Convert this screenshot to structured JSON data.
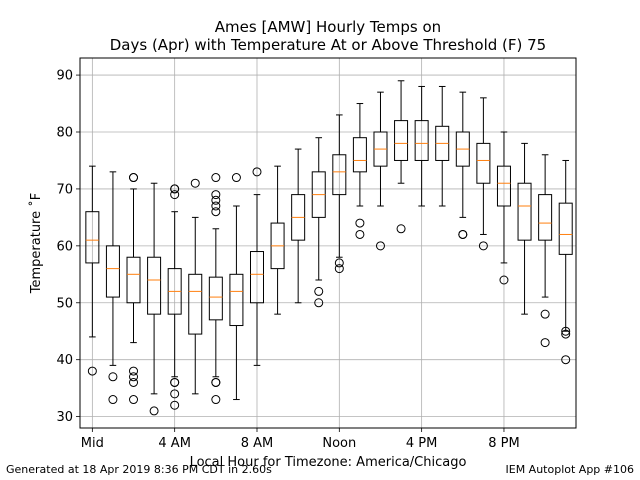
{
  "chart_data": {
    "type": "box",
    "title_line1": "Ames [AMW] Hourly Temps on",
    "title_line2": "Days (Apr) with Temperature At or Above Threshold (F) 75",
    "xlabel": "Local Hour for Timezone: America/Chicago",
    "ylabel": "Temperature ˚F",
    "ylim": [
      28,
      93
    ],
    "xlim": [
      -0.6,
      23.5
    ],
    "yticks": [
      30,
      40,
      50,
      60,
      70,
      80,
      90
    ],
    "xticks": [
      {
        "hour": 0,
        "label": "Mid"
      },
      {
        "hour": 4,
        "label": "4 AM"
      },
      {
        "hour": 8,
        "label": "8 AM"
      },
      {
        "hour": 12,
        "label": "Noon"
      },
      {
        "hour": 16,
        "label": "4 PM"
      },
      {
        "hour": 20,
        "label": "8 PM"
      }
    ],
    "grid": true,
    "box_color": "#000000",
    "median_color": "#ff7f0e",
    "boxes": [
      {
        "hour": 0,
        "whislo": 44,
        "q1": 57,
        "med": 61,
        "q3": 66,
        "whishi": 74,
        "fliers": [
          38
        ]
      },
      {
        "hour": 1,
        "whislo": 39,
        "q1": 51,
        "med": 56,
        "q3": 60,
        "whishi": 73,
        "fliers": [
          33,
          37
        ]
      },
      {
        "hour": 2,
        "whislo": 43,
        "q1": 50,
        "med": 55,
        "q3": 58,
        "whishi": 70,
        "fliers": [
          33,
          36,
          37,
          38,
          72,
          72
        ]
      },
      {
        "hour": 3,
        "whislo": 34,
        "q1": 48,
        "med": 54,
        "q3": 58,
        "whishi": 71,
        "fliers": [
          31
        ]
      },
      {
        "hour": 4,
        "whislo": 37,
        "q1": 48,
        "med": 52,
        "q3": 56,
        "whishi": 66,
        "fliers": [
          32,
          34,
          36,
          36,
          69,
          70,
          70
        ]
      },
      {
        "hour": 5,
        "whislo": 34,
        "q1": 44.5,
        "med": 52,
        "q3": 55,
        "whishi": 65,
        "fliers": [
          71
        ]
      },
      {
        "hour": 6,
        "whislo": 37,
        "q1": 47,
        "med": 51,
        "q3": 54.5,
        "whishi": 63,
        "fliers": [
          33,
          36,
          36,
          66,
          67,
          68,
          69,
          72
        ]
      },
      {
        "hour": 7,
        "whislo": 33,
        "q1": 46,
        "med": 52,
        "q3": 55,
        "whishi": 67,
        "fliers": [
          72
        ]
      },
      {
        "hour": 8,
        "whislo": 39,
        "q1": 50,
        "med": 55,
        "q3": 59,
        "whishi": 69,
        "fliers": [
          73
        ]
      },
      {
        "hour": 9,
        "whislo": 48,
        "q1": 56,
        "med": 60,
        "q3": 64,
        "whishi": 74,
        "fliers": []
      },
      {
        "hour": 10,
        "whislo": 50,
        "q1": 61,
        "med": 65,
        "q3": 69,
        "whishi": 77,
        "fliers": []
      },
      {
        "hour": 11,
        "whislo": 54,
        "q1": 65,
        "med": 69,
        "q3": 73,
        "whishi": 79,
        "fliers": [
          50,
          52
        ]
      },
      {
        "hour": 12,
        "whislo": 58,
        "q1": 69,
        "med": 73,
        "q3": 76,
        "whishi": 83,
        "fliers": [
          56,
          57
        ]
      },
      {
        "hour": 13,
        "whislo": 67,
        "q1": 73,
        "med": 75,
        "q3": 79,
        "whishi": 85,
        "fliers": [
          62,
          64
        ]
      },
      {
        "hour": 14,
        "whislo": 67,
        "q1": 74,
        "med": 77,
        "q3": 80,
        "whishi": 87,
        "fliers": [
          60
        ]
      },
      {
        "hour": 15,
        "whislo": 71,
        "q1": 75,
        "med": 78,
        "q3": 82,
        "whishi": 89,
        "fliers": [
          63
        ]
      },
      {
        "hour": 16,
        "whislo": 67,
        "q1": 75,
        "med": 78,
        "q3": 82,
        "whishi": 88,
        "fliers": []
      },
      {
        "hour": 17,
        "whislo": 67,
        "q1": 75,
        "med": 78,
        "q3": 81,
        "whishi": 88,
        "fliers": []
      },
      {
        "hour": 18,
        "whislo": 65,
        "q1": 74,
        "med": 77,
        "q3": 80,
        "whishi": 87,
        "fliers": [
          62,
          62
        ]
      },
      {
        "hour": 19,
        "whislo": 62,
        "q1": 71,
        "med": 75,
        "q3": 78,
        "whishi": 86,
        "fliers": [
          60
        ]
      },
      {
        "hour": 20,
        "whislo": 57,
        "q1": 67,
        "med": 71,
        "q3": 74,
        "whishi": 80,
        "fliers": [
          54
        ]
      },
      {
        "hour": 21,
        "whislo": 48,
        "q1": 61,
        "med": 67,
        "q3": 71,
        "whishi": 78,
        "fliers": []
      },
      {
        "hour": 22,
        "whislo": 51,
        "q1": 61,
        "med": 64,
        "q3": 69,
        "whishi": 76,
        "fliers": [
          43,
          48
        ]
      },
      {
        "hour": 23,
        "whislo": 45,
        "q1": 58.5,
        "med": 62,
        "q3": 67.5,
        "whishi": 75,
        "fliers": [
          40,
          44.5,
          45
        ]
      }
    ]
  },
  "footer": {
    "left": "Generated at 18 Apr 2019 8:36 PM CDT in 2.60s",
    "right": "IEM Autoplot App #106"
  }
}
